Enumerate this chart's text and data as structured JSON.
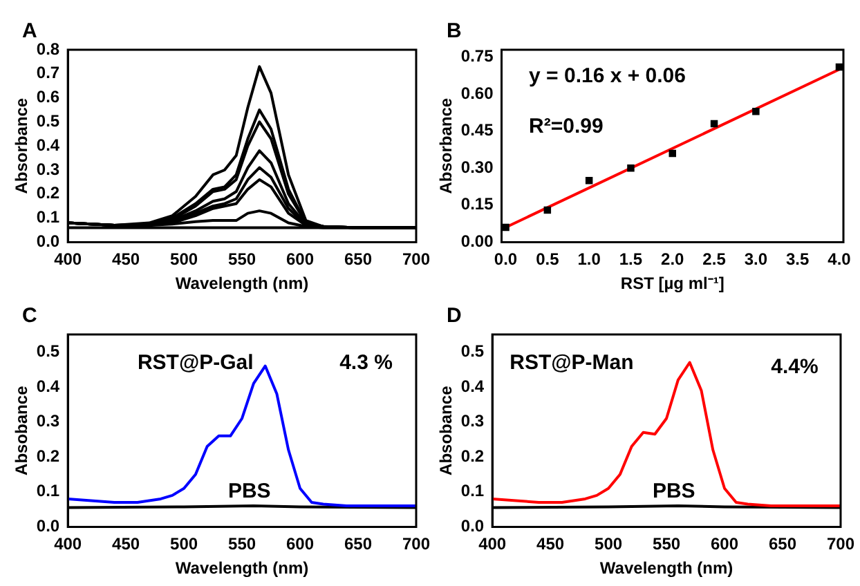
{
  "chart_data": [
    {
      "type": "line",
      "title": "A",
      "xlabel": "Wavelength (nm)",
      "ylabel": "Absorbance",
      "marker": "none",
      "x": [
        400,
        440,
        470,
        490,
        510,
        525,
        535,
        545,
        555,
        565,
        575,
        590,
        605,
        620,
        650,
        700
      ],
      "series": [
        {
          "color": "#000000",
          "values": [
            0.08,
            0.07,
            0.08,
            0.11,
            0.19,
            0.28,
            0.3,
            0.36,
            0.56,
            0.73,
            0.62,
            0.28,
            0.09,
            0.065,
            0.06,
            0.06
          ]
        },
        {
          "color": "#000000",
          "values": [
            0.08,
            0.07,
            0.075,
            0.1,
            0.16,
            0.22,
            0.23,
            0.28,
            0.43,
            0.55,
            0.47,
            0.22,
            0.08,
            0.065,
            0.06,
            0.06
          ]
        },
        {
          "color": "#000000",
          "values": [
            0.08,
            0.07,
            0.075,
            0.095,
            0.15,
            0.21,
            0.22,
            0.26,
            0.4,
            0.5,
            0.43,
            0.2,
            0.08,
            0.065,
            0.06,
            0.06
          ]
        },
        {
          "color": "#000000",
          "values": [
            0.08,
            0.07,
            0.07,
            0.09,
            0.13,
            0.17,
            0.18,
            0.21,
            0.31,
            0.38,
            0.33,
            0.16,
            0.075,
            0.065,
            0.06,
            0.06
          ]
        },
        {
          "color": "#000000",
          "values": [
            0.08,
            0.07,
            0.07,
            0.085,
            0.12,
            0.15,
            0.16,
            0.18,
            0.26,
            0.31,
            0.27,
            0.14,
            0.07,
            0.065,
            0.06,
            0.06
          ]
        },
        {
          "color": "#000000",
          "values": [
            0.08,
            0.07,
            0.07,
            0.08,
            0.11,
            0.14,
            0.15,
            0.16,
            0.22,
            0.26,
            0.23,
            0.12,
            0.07,
            0.065,
            0.06,
            0.06
          ]
        },
        {
          "color": "#000000",
          "values": [
            0.08,
            0.07,
            0.07,
            0.075,
            0.085,
            0.09,
            0.09,
            0.09,
            0.12,
            0.13,
            0.12,
            0.08,
            0.065,
            0.06,
            0.06,
            0.06
          ]
        },
        {
          "color": "#000000",
          "values": [
            0.06,
            0.06,
            0.06,
            0.06,
            0.06,
            0.06,
            0.06,
            0.06,
            0.06,
            0.06,
            0.06,
            0.06,
            0.06,
            0.06,
            0.06,
            0.06
          ]
        }
      ],
      "xlim": [
        400,
        700
      ],
      "xticks": [
        400,
        450,
        500,
        550,
        600,
        650,
        700
      ],
      "ylim": [
        0,
        0.8
      ],
      "yticks": [
        {
          "value": 0,
          "label": "0.0"
        },
        0.1,
        0.2,
        0.3,
        0.4,
        0.5,
        0.6,
        0.7,
        0.8
      ]
    },
    {
      "type": "scatter",
      "title": "B",
      "xlabel": "RST [µg ml⁻¹]",
      "ylabel": "Absorbance",
      "annotations": [
        "y = 0.16 x + 0.06",
        "R²=0.99"
      ],
      "series": [
        {
          "type": "scatter",
          "marker": "square",
          "color": "#000000",
          "x": [
            0,
            0.5,
            1,
            1.5,
            2,
            2.5,
            3,
            4
          ],
          "values": [
            0.06,
            0.13,
            0.25,
            0.3,
            0.36,
            0.48,
            0.53,
            0.71
          ]
        },
        {
          "type": "line",
          "marker": "none",
          "color": "#ff0000",
          "x": [
            0,
            4
          ],
          "values": [
            0.06,
            0.7
          ]
        }
      ],
      "xlim": [
        -0.05,
        4.05
      ],
      "xticks": [
        {
          "value": 0,
          "label": "0.0"
        },
        0.5,
        {
          "value": 1,
          "label": "1.0"
        },
        1.5,
        {
          "value": 2,
          "label": "2.0"
        },
        2.5,
        {
          "value": 3,
          "label": "3.0"
        },
        3.5,
        {
          "value": 4,
          "label": "4.0"
        }
      ],
      "ylim": [
        0,
        0.78
      ],
      "yticks": [
        {
          "value": 0,
          "label": "0.00"
        },
        0.15,
        {
          "value": 0.3,
          "label": "0.30"
        },
        0.45,
        {
          "value": 0.6,
          "label": "0.60"
        },
        0.75
      ]
    },
    {
      "type": "line",
      "title": "C",
      "xlabel": "Wavelength (nm)",
      "ylabel": "Absobance",
      "marker": "none",
      "annotations": [
        "4.3 %"
      ],
      "series": [
        {
          "name": "RST@P-Gal",
          "color": "#0000ff",
          "x": [
            400,
            440,
            460,
            480,
            490,
            500,
            510,
            520,
            530,
            540,
            550,
            560,
            570,
            580,
            590,
            600,
            610,
            620,
            640,
            700
          ],
          "values": [
            0.08,
            0.07,
            0.07,
            0.08,
            0.09,
            0.11,
            0.15,
            0.23,
            0.26,
            0.26,
            0.31,
            0.41,
            0.46,
            0.38,
            0.22,
            0.11,
            0.07,
            0.065,
            0.06,
            0.06
          ]
        },
        {
          "name": "PBS",
          "color": "#000000",
          "x": [
            400,
            500,
            560,
            600,
            700
          ],
          "values": [
            0.055,
            0.057,
            0.06,
            0.057,
            0.055
          ]
        }
      ],
      "xlim": [
        400,
        700
      ],
      "xticks": [
        400,
        450,
        500,
        550,
        600,
        650,
        700
      ],
      "ylim": [
        0,
        0.55
      ],
      "yticks": [
        {
          "value": 0,
          "label": "0.0"
        },
        0.1,
        0.2,
        0.3,
        0.4,
        0.5
      ]
    },
    {
      "type": "line",
      "title": "D",
      "xlabel": "Wavelength (nm)",
      "ylabel": "Absobance",
      "marker": "none",
      "annotations": [
        "4.4%"
      ],
      "series": [
        {
          "name": "RST@P-Man",
          "color": "#ff0000",
          "x": [
            400,
            440,
            460,
            480,
            490,
            500,
            510,
            520,
            530,
            540,
            550,
            560,
            570,
            580,
            590,
            600,
            610,
            620,
            640,
            700
          ],
          "values": [
            0.08,
            0.07,
            0.07,
            0.08,
            0.09,
            0.11,
            0.15,
            0.23,
            0.27,
            0.265,
            0.31,
            0.42,
            0.47,
            0.39,
            0.22,
            0.11,
            0.07,
            0.065,
            0.06,
            0.06
          ]
        },
        {
          "name": "PBS",
          "color": "#000000",
          "x": [
            400,
            500,
            560,
            600,
            700
          ],
          "values": [
            0.055,
            0.057,
            0.06,
            0.057,
            0.055
          ]
        }
      ],
      "xlim": [
        400,
        700
      ],
      "xticks": [
        400,
        450,
        500,
        550,
        600,
        650,
        700
      ],
      "ylim": [
        0,
        0.55
      ],
      "yticks": [
        {
          "value": 0,
          "label": "0.0"
        },
        0.1,
        0.2,
        0.3,
        0.4,
        0.5
      ]
    }
  ]
}
